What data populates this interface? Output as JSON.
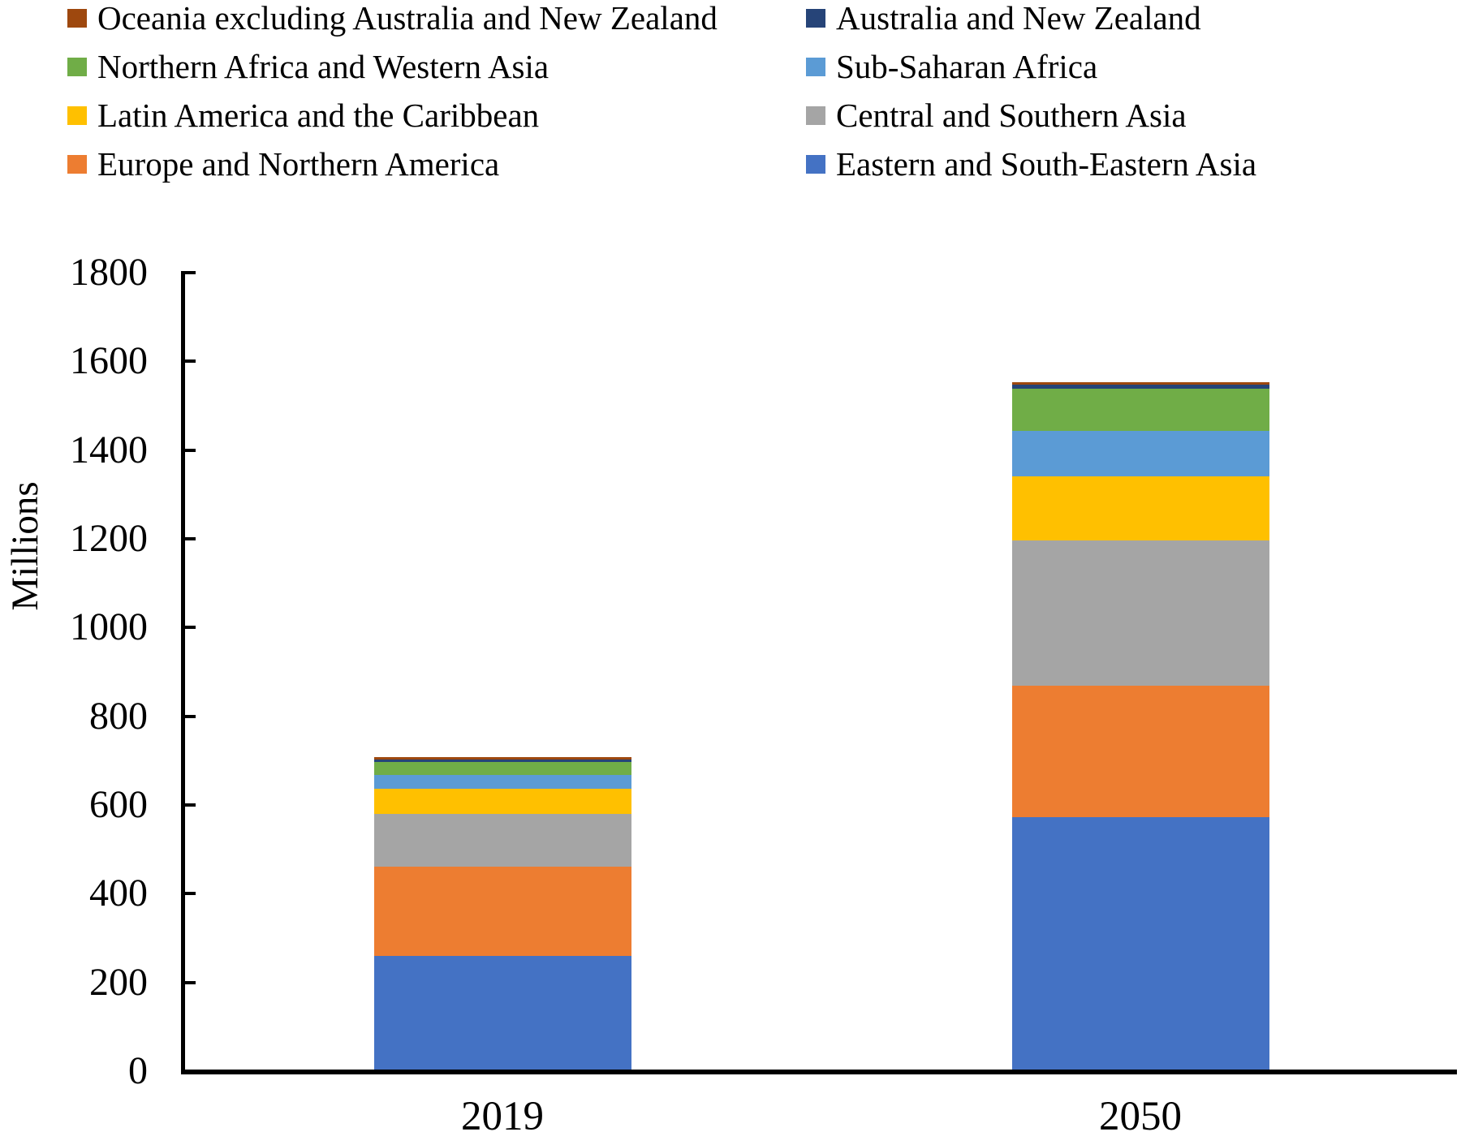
{
  "figure": {
    "background": "#FFFFFF"
  },
  "legend": {
    "position": "top",
    "columns": [
      [
        {
          "key": "oceania-excluding-australia-and-new-zealand",
          "label": "Oceania excluding Australia and New Zealand",
          "color": "#9E480E"
        },
        {
          "key": "northern-africa-and-western-asia",
          "label": "Northern Africa and Western Asia",
          "color": "#70AD47"
        },
        {
          "key": "latin-america-and-the-caribbean",
          "label": "Latin America and the Caribbean",
          "color": "#FFC000"
        },
        {
          "key": "europe-and-northern-america",
          "label": "Europe and Northern America",
          "color": "#ED7D31"
        }
      ],
      [
        {
          "key": "australia-and-new-zealand",
          "label": "Australia and New Zealand",
          "color": "#264478"
        },
        {
          "key": "sub-saharan-africa",
          "label": "Sub-Saharan Africa",
          "color": "#5B9BD5"
        },
        {
          "key": "central-and-southern-asia",
          "label": "Central and Southern Asia",
          "color": "#A5A5A5"
        },
        {
          "key": "eastern-and-south-eastern-asia",
          "label": "Eastern and South-Eastern Asia",
          "color": "#4472C4"
        }
      ]
    ]
  },
  "chart_data": {
    "type": "bar",
    "stacked": true,
    "title": "",
    "xlabel": "",
    "ylabel": "Millions",
    "categories": [
      "2019",
      "2050"
    ],
    "ylim": [
      0,
      1800
    ],
    "ytick_step": 200,
    "grid": false,
    "legend_position": "top",
    "stack_order_note": "series listed bottom-to-top of stack",
    "series": [
      {
        "key": "eastern-and-south-eastern-asia",
        "name": "Eastern and South-Eastern Asia",
        "color": "#4472C4",
        "values": [
          260.6,
          572.5
        ]
      },
      {
        "key": "europe-and-northern-america",
        "name": "Europe and Northern America",
        "color": "#ED7D31",
        "values": [
          200.4,
          296.2
        ]
      },
      {
        "key": "central-and-southern-asia",
        "name": "Central and Southern Asia",
        "color": "#A5A5A5",
        "values": [
          119.0,
          328.1
        ]
      },
      {
        "key": "latin-america-and-the-caribbean",
        "name": "Latin America and the Caribbean",
        "color": "#FFC000",
        "values": [
          56.4,
          144.6
        ]
      },
      {
        "key": "sub-saharan-africa",
        "name": "Sub-Saharan Africa",
        "color": "#5B9BD5",
        "values": [
          31.9,
          101.4
        ]
      },
      {
        "key": "northern-africa-and-western-asia",
        "name": "Northern Africa and Western Asia",
        "color": "#70AD47",
        "values": [
          29.4,
          95.8
        ]
      },
      {
        "key": "australia-and-new-zealand",
        "name": "Australia and New Zealand",
        "color": "#264478",
        "values": [
          4.8,
          8.8
        ]
      },
      {
        "key": "oceania-excluding-australia-and-new-zealand",
        "name": "Oceania excluding Australia and New Zealand",
        "color": "#9E480E",
        "values": [
          0.5,
          1.5
        ]
      }
    ]
  }
}
